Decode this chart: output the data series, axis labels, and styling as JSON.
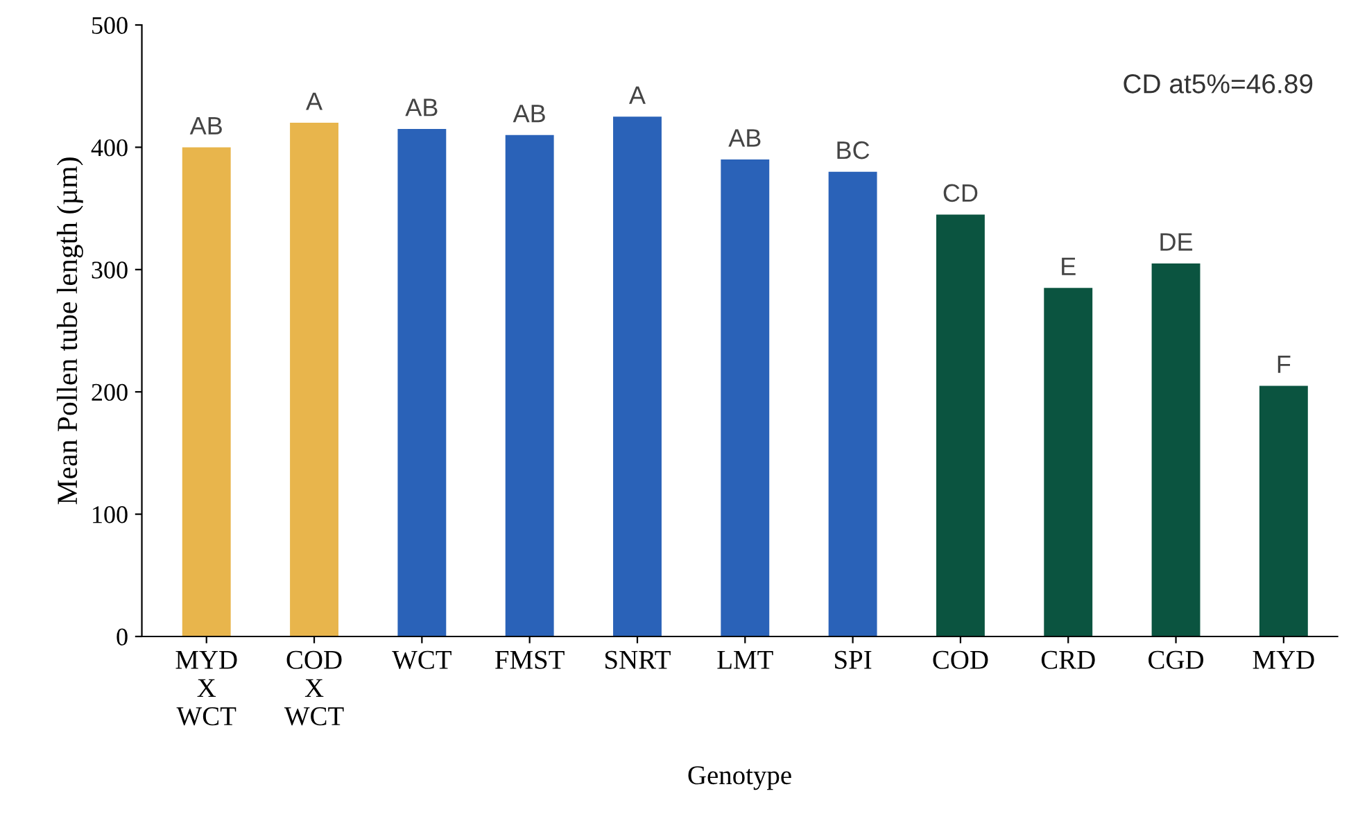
{
  "chart_data": {
    "type": "bar",
    "xlabel": "Genotype",
    "ylabel": "Mean Pollen tube length (µm)",
    "categories": [
      "MYD\nX\nWCT",
      "COD\nX\nWCT",
      "WCT",
      "FMST",
      "SNRT",
      "LMT",
      "SPI",
      "COD",
      "CRD",
      "CGD",
      "MYD"
    ],
    "values": [
      400,
      420,
      415,
      410,
      425,
      390,
      380,
      345,
      285,
      305,
      205
    ],
    "colors": [
      "#e8b54c",
      "#e8b54c",
      "#2a62b8",
      "#2a62b8",
      "#2a62b8",
      "#2a62b8",
      "#2a62b8",
      "#0b5440",
      "#0b5440",
      "#0b5440",
      "#0b5440"
    ],
    "value_labels": [
      "AB",
      "A",
      "AB",
      "AB",
      "A",
      "AB",
      "BC",
      "CD",
      "E",
      "DE",
      "F"
    ],
    "annotations": [
      "CD at5%=46.89"
    ],
    "ylim": [
      0,
      500
    ],
    "yticks": [
      0,
      100,
      200,
      300,
      400,
      500
    ],
    "grid": false,
    "legend": false
  }
}
